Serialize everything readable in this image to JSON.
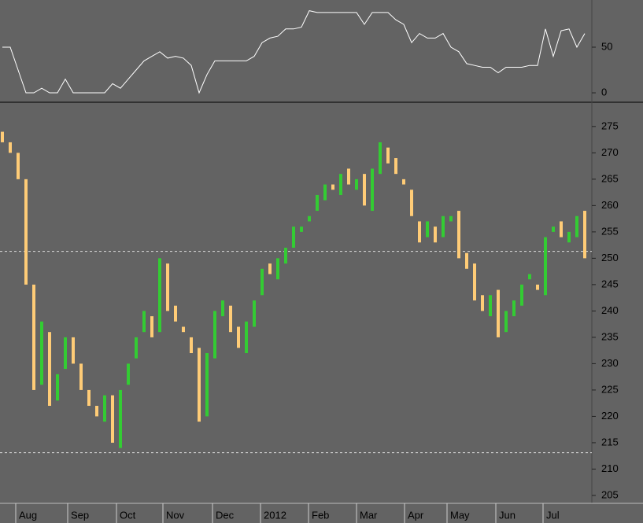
{
  "chart_data": [
    {
      "type": "line",
      "color": "#ffffff",
      "values": [
        50,
        50,
        25,
        0,
        0,
        5,
        0,
        0,
        15,
        0,
        0,
        0,
        0,
        0,
        10,
        5,
        15,
        25,
        35,
        40,
        45,
        38,
        40,
        38,
        30,
        0,
        20,
        35,
        35,
        35,
        35,
        35,
        40,
        55,
        60,
        62,
        70,
        70,
        72,
        90,
        88,
        88,
        88,
        88,
        88,
        88,
        75,
        88,
        88,
        88,
        80,
        75,
        55,
        65,
        60,
        60,
        65,
        50,
        45,
        32,
        30,
        28,
        28,
        22,
        28,
        28,
        28,
        30,
        30,
        70,
        40,
        68,
        70,
        50,
        65
      ],
      "ylim": [
        -10.3,
        101.7
      ],
      "yticks": [
        0,
        50
      ]
    },
    {
      "type": "candlestick",
      "up_color": "#33cc33",
      "down_color": "#ffcc77",
      "open": [
        274,
        272,
        270,
        265,
        245,
        226,
        236,
        223,
        229,
        235,
        230,
        225,
        222,
        219,
        224,
        214,
        226,
        231,
        236,
        239,
        236,
        249,
        241,
        237,
        235,
        233,
        220,
        231,
        239,
        241,
        237,
        232,
        237,
        243,
        249,
        246,
        249,
        252,
        255,
        257,
        259,
        261,
        264,
        262,
        267,
        263,
        266,
        259,
        266,
        271,
        269,
        265,
        263,
        257,
        254,
        256,
        254,
        257,
        259,
        251,
        249,
        243,
        239,
        244,
        236,
        239,
        241,
        246,
        245,
        243,
        255,
        257,
        253,
        254,
        259
      ],
      "close": [
        272,
        270,
        265,
        245,
        225,
        238,
        222,
        228,
        235,
        230,
        225,
        222,
        220,
        224,
        215,
        225,
        230,
        235,
        240,
        235,
        250,
        240,
        238,
        236,
        232,
        219,
        232,
        240,
        242,
        236,
        233,
        238,
        242,
        248,
        247,
        250,
        252,
        256,
        256,
        258,
        262,
        264,
        263,
        266,
        264,
        265,
        260,
        267,
        272,
        268,
        266,
        264,
        258,
        253,
        257,
        253,
        258,
        258,
        250,
        248,
        242,
        240,
        243,
        235,
        240,
        242,
        245,
        247,
        244,
        254,
        256,
        254,
        255,
        258,
        250
      ],
      "ylim": [
        203.5,
        279.6
      ],
      "yticks": [
        205,
        210,
        215,
        220,
        225,
        230,
        235,
        240,
        245,
        250,
        255,
        260,
        265,
        270,
        275
      ],
      "xlim": [
        -0.3,
        74.9
      ],
      "xticks": [
        {
          "value": 1.7,
          "label": "Aug"
        },
        {
          "value": 8.3,
          "label": "Sep"
        },
        {
          "value": 14.5,
          "label": "Oct"
        },
        {
          "value": 20.4,
          "label": "Nov"
        },
        {
          "value": 26.7,
          "label": "Dec"
        },
        {
          "value": 32.8,
          "label": "2012"
        },
        {
          "value": 38.9,
          "label": "Feb"
        },
        {
          "value": 45,
          "label": "Mar"
        },
        {
          "value": 51.1,
          "label": "Apr"
        },
        {
          "value": 56.5,
          "label": "May"
        },
        {
          "value": 62.7,
          "label": "Jun"
        },
        {
          "value": 68.7,
          "label": "Jul"
        }
      ],
      "reference_lines": [
        251.3,
        213.1
      ]
    }
  ]
}
